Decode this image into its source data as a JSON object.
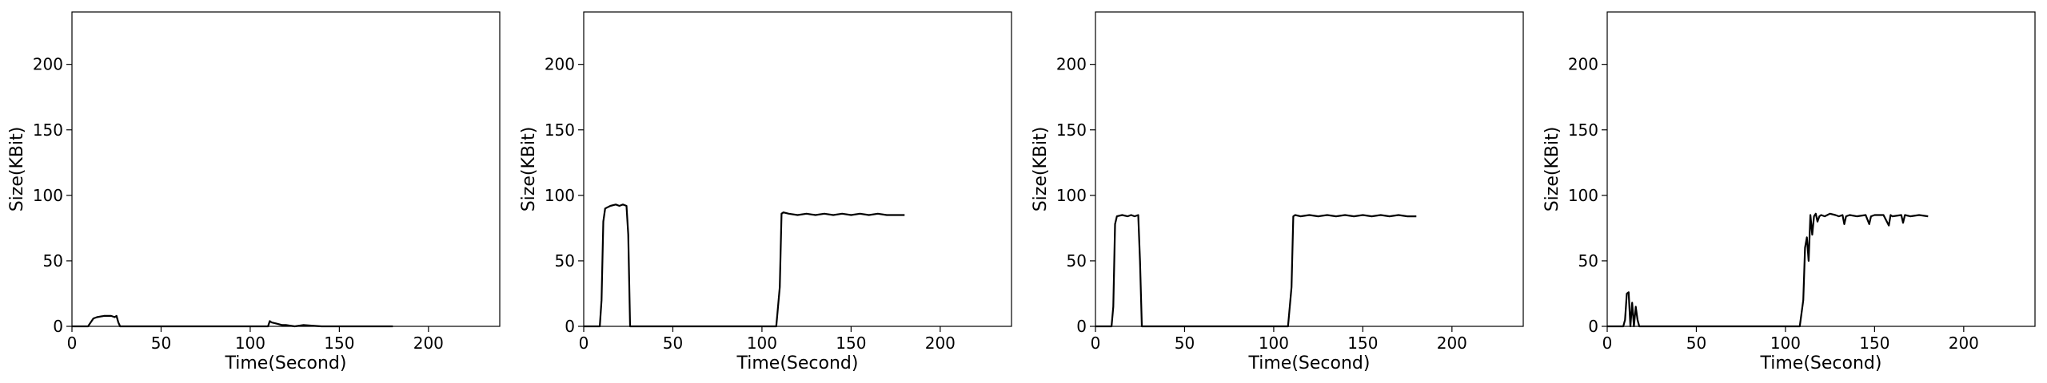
{
  "chart_data": [
    {
      "type": "line",
      "xlabel": "Time(Second)",
      "ylabel": "Size(KBit)",
      "xlim": [
        0,
        240
      ],
      "ylim": [
        0,
        240
      ],
      "xticks": [
        0,
        50,
        100,
        150,
        200
      ],
      "yticks": [
        0,
        50,
        100,
        150,
        200
      ],
      "grid": false,
      "color": "#000000",
      "x": [
        0,
        5,
        9,
        10,
        12,
        14,
        18,
        22,
        24,
        25,
        26,
        27,
        30,
        40,
        60,
        80,
        100,
        108,
        110,
        111,
        112,
        115,
        118,
        120,
        125,
        130,
        140,
        150,
        160,
        170,
        180
      ],
      "y": [
        0,
        0,
        0,
        2,
        6,
        7,
        8,
        8,
        7,
        8,
        3,
        0,
        0,
        0,
        0,
        0,
        0,
        0,
        0,
        4,
        3,
        2,
        1,
        1,
        0,
        1,
        0,
        0,
        0,
        0,
        0
      ]
    },
    {
      "type": "line",
      "xlabel": "Time(Second)",
      "ylabel": "Size(KBit)",
      "xlim": [
        0,
        240
      ],
      "ylim": [
        0,
        240
      ],
      "xticks": [
        0,
        50,
        100,
        150,
        200
      ],
      "yticks": [
        0,
        50,
        100,
        150,
        200
      ],
      "grid": false,
      "color": "#000000",
      "x": [
        0,
        3,
        6,
        9,
        10,
        11,
        12,
        15,
        18,
        20,
        22,
        24,
        25,
        26,
        27,
        30,
        40,
        50,
        60,
        70,
        80,
        90,
        100,
        108,
        110,
        111,
        112,
        115,
        120,
        125,
        130,
        135,
        140,
        145,
        150,
        155,
        160,
        165,
        170,
        175,
        180
      ],
      "y": [
        0,
        0,
        0,
        0,
        20,
        80,
        90,
        92,
        93,
        92,
        93,
        92,
        70,
        0,
        0,
        0,
        0,
        0,
        0,
        0,
        0,
        0,
        0,
        0,
        30,
        86,
        87,
        86,
        85,
        86,
        85,
        86,
        85,
        86,
        85,
        86,
        85,
        86,
        85,
        85,
        85
      ]
    },
    {
      "type": "line",
      "xlabel": "Time(Second)",
      "ylabel": "Size(KBit)",
      "xlim": [
        0,
        240
      ],
      "ylim": [
        0,
        240
      ],
      "xticks": [
        0,
        50,
        100,
        150,
        200
      ],
      "yticks": [
        0,
        50,
        100,
        150,
        200
      ],
      "grid": false,
      "color": "#000000",
      "x": [
        0,
        3,
        6,
        9,
        10,
        11,
        12,
        15,
        18,
        20,
        22,
        24,
        25,
        26,
        27,
        30,
        40,
        50,
        60,
        70,
        80,
        90,
        100,
        108,
        110,
        111,
        112,
        115,
        120,
        125,
        130,
        135,
        140,
        145,
        150,
        155,
        160,
        165,
        170,
        175,
        180
      ],
      "y": [
        0,
        0,
        0,
        0,
        15,
        78,
        84,
        85,
        84,
        85,
        84,
        85,
        50,
        0,
        0,
        0,
        0,
        0,
        0,
        0,
        0,
        0,
        0,
        0,
        30,
        84,
        85,
        84,
        85,
        84,
        85,
        84,
        85,
        84,
        85,
        84,
        85,
        84,
        85,
        84,
        84
      ]
    },
    {
      "type": "line",
      "xlabel": "Time(Second)",
      "ylabel": "Size(KBit)",
      "xlim": [
        0,
        240
      ],
      "ylim": [
        0,
        240
      ],
      "xticks": [
        0,
        50,
        100,
        150,
        200
      ],
      "yticks": [
        0,
        50,
        100,
        150,
        200
      ],
      "grid": false,
      "color": "#000000",
      "x": [
        0,
        5,
        9,
        10,
        11,
        12,
        13,
        14,
        15,
        16,
        17,
        18,
        19,
        20,
        25,
        40,
        60,
        80,
        100,
        108,
        110,
        111,
        112,
        113,
        114,
        115,
        116,
        117,
        118,
        119,
        120,
        122,
        125,
        128,
        130,
        132,
        133,
        134,
        136,
        140,
        145,
        147,
        148,
        150,
        155,
        158,
        159,
        160,
        165,
        166,
        167,
        170,
        175,
        180
      ],
      "y": [
        0,
        0,
        0,
        5,
        25,
        26,
        0,
        18,
        0,
        15,
        5,
        0,
        0,
        0,
        0,
        0,
        0,
        0,
        0,
        0,
        20,
        60,
        68,
        50,
        85,
        70,
        84,
        86,
        80,
        84,
        85,
        84,
        86,
        85,
        84,
        85,
        78,
        84,
        85,
        84,
        85,
        78,
        84,
        85,
        85,
        77,
        85,
        84,
        85,
        79,
        85,
        84,
        85,
        84
      ]
    }
  ]
}
